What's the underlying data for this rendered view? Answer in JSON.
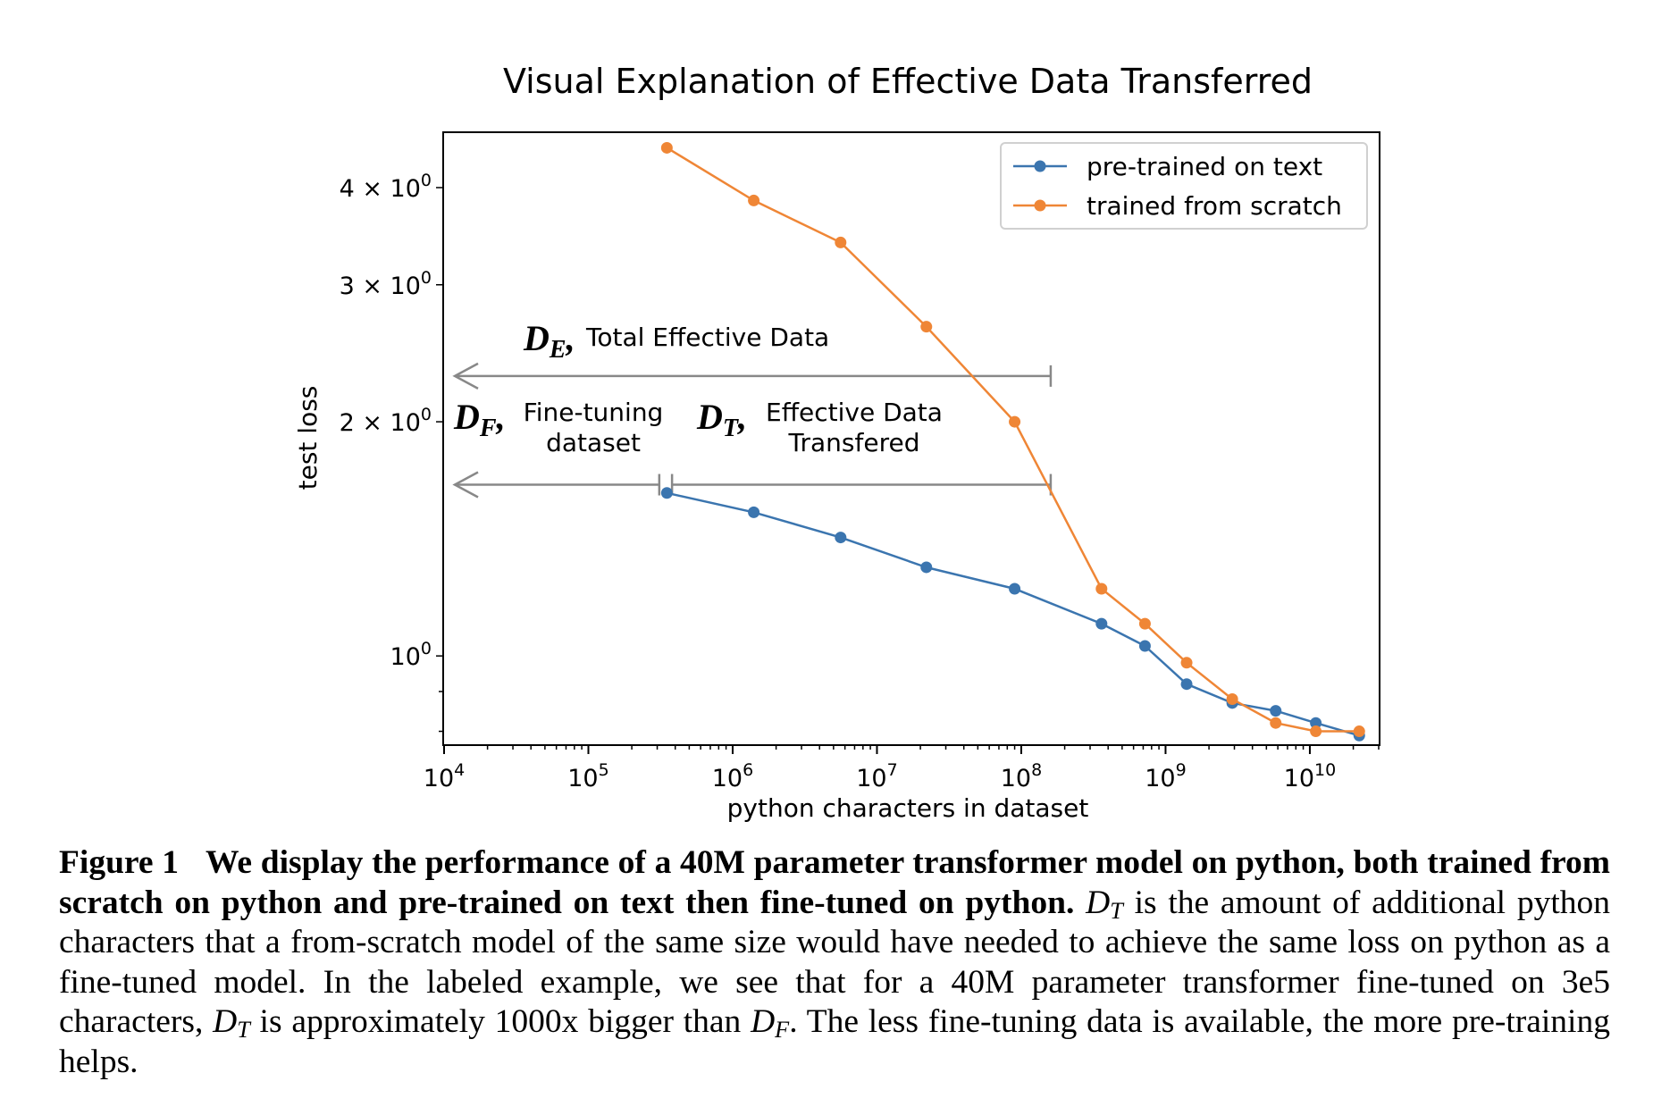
{
  "chart_data": {
    "type": "line",
    "title": "Visual Explanation of Effective Data Transferred",
    "xlabel": "python characters in dataset",
    "ylabel": "test loss",
    "x_scale": "log",
    "y_scale": "log",
    "xlim": [
      10000,
      30000000000
    ],
    "ylim": [
      0.77,
      4.7
    ],
    "x_ticks": [
      {
        "value": 10000,
        "base": "10",
        "exp": "4"
      },
      {
        "value": 100000,
        "base": "10",
        "exp": "5"
      },
      {
        "value": 1000000,
        "base": "10",
        "exp": "6"
      },
      {
        "value": 10000000,
        "base": "10",
        "exp": "7"
      },
      {
        "value": 100000000,
        "base": "10",
        "exp": "8"
      },
      {
        "value": 1000000000,
        "base": "10",
        "exp": "9"
      },
      {
        "value": 10000000000,
        "base": "10",
        "exp": "10"
      }
    ],
    "y_ticks": [
      {
        "value": 4,
        "mant": "4 × 10",
        "exp": "0"
      },
      {
        "value": 3,
        "mant": "3 × 10",
        "exp": "0"
      },
      {
        "value": 2,
        "mant": "2 × 10",
        "exp": "0"
      },
      {
        "value": 1,
        "mant": "10",
        "exp": "0"
      }
    ],
    "legend_position": "top-right",
    "grid": false,
    "series": [
      {
        "name": "pre-trained on text",
        "color": "#3b75af",
        "x": [
          350000,
          1400000,
          5600000,
          22000000,
          90000000,
          360000000,
          720000000,
          1400000000,
          2900000000,
          5800000000,
          11000000000,
          22000000000
        ],
        "y": [
          1.62,
          1.53,
          1.42,
          1.3,
          1.22,
          1.1,
          1.03,
          0.92,
          0.87,
          0.85,
          0.82,
          0.79
        ]
      },
      {
        "name": "trained from scratch",
        "color": "#ef8636",
        "x": [
          350000,
          1400000,
          5600000,
          22000000,
          90000000,
          360000000,
          720000000,
          1400000000,
          2900000000,
          5800000000,
          11000000000,
          22000000000
        ],
        "y": [
          4.5,
          3.85,
          3.4,
          2.65,
          2.0,
          1.22,
          1.1,
          0.98,
          0.88,
          0.82,
          0.8,
          0.8
        ]
      }
    ],
    "annotations": [
      {
        "id": "de",
        "symbol": "D",
        "subscript": "E",
        "text": "Total Effective Data",
        "arrow_from": 160000000,
        "arrow_to": 10000,
        "y": 2.29
      },
      {
        "id": "df",
        "symbol": "D",
        "subscript": "F",
        "text_line1": "Fine-tuning",
        "text_line2": "dataset",
        "arrow_from": 310000,
        "arrow_to": 10000,
        "y": 1.66
      },
      {
        "id": "dt",
        "symbol": "D",
        "subscript": "T",
        "text_line1": "Effective Data",
        "text_line2": "Transfered",
        "arrow_from": 160000000,
        "arrow_to": 380000,
        "y": 1.66
      }
    ]
  },
  "caption": {
    "label": "Figure 1",
    "bold_text": "We display the performance of a 40M parameter transformer model on python, both trained from scratch on python and pre-trained on text then fine-tuned on python.",
    "sym_d": "D",
    "sub_t": "T",
    "sub_f": "F",
    "text_1": " is the amount of additional python characters that a from-scratch model of the same size would have needed to achieve the same loss on python as a fine-tuned model. In the labeled example, we see that for a 40M parameter transformer fine-tuned on 3e5 characters, ",
    "text_2": " is approximately 1000x bigger than ",
    "text_3": ". The less fine-tuning data is available, the more pre-training helps."
  }
}
